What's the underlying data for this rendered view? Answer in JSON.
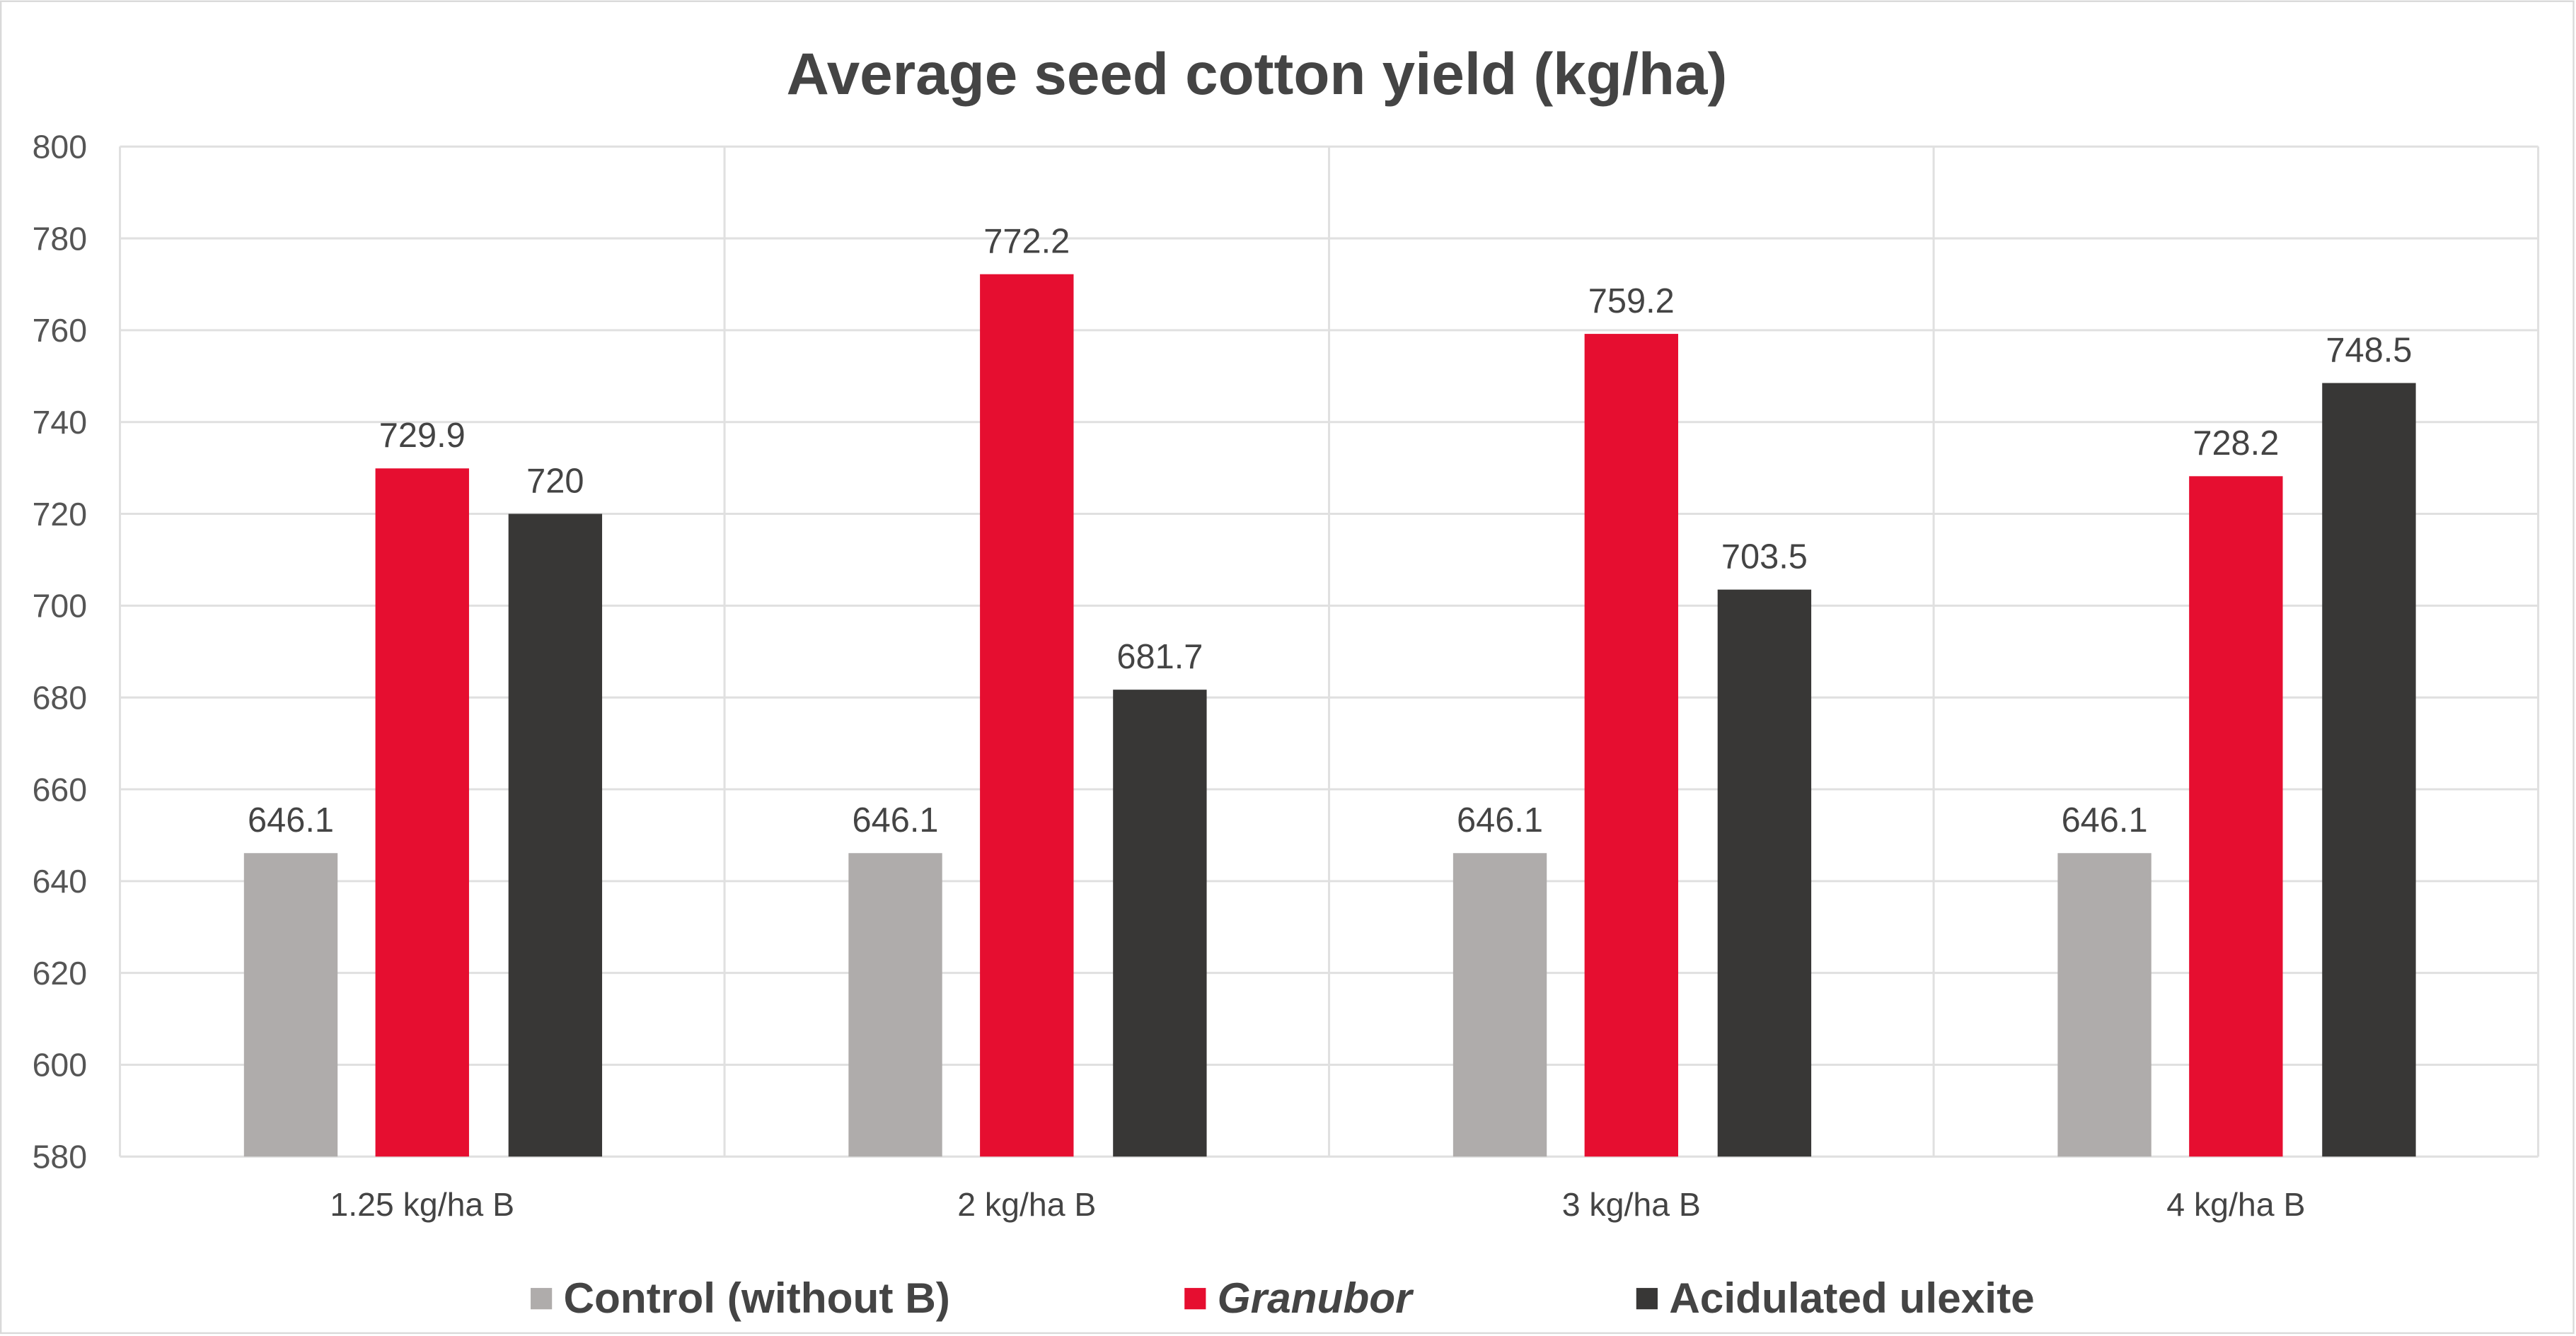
{
  "chart_data": {
    "type": "bar",
    "title": "Average seed cotton yield (kg/ha)",
    "xlabel": "",
    "ylabel": "",
    "categories": [
      "1.25 kg/ha B",
      "2 kg/ha B",
      "3 kg/ha B",
      "4 kg/ha B"
    ],
    "ylim": [
      580,
      800
    ],
    "yticks": [
      580,
      600,
      620,
      640,
      660,
      680,
      700,
      720,
      740,
      760,
      780,
      800
    ],
    "grid": true,
    "legend_position": "bottom",
    "series": [
      {
        "name": "Control (without B)",
        "color": "#AFACAB",
        "italic": false,
        "values": [
          646.1,
          646.1,
          646.1,
          646.1
        ],
        "labels": [
          "646.1",
          "646.1",
          "646.1",
          "646.1"
        ]
      },
      {
        "name": "Granubor",
        "color": "#E60E30",
        "italic": true,
        "values": [
          729.9,
          772.2,
          759.2,
          728.2
        ],
        "labels": [
          "729.9",
          "772.2",
          "759.2",
          "728.2"
        ]
      },
      {
        "name": "Acidulated ulexite",
        "color": "#383736",
        "italic": false,
        "values": [
          720,
          681.7,
          703.5,
          748.5
        ],
        "labels": [
          "720",
          "681.7",
          "703.5",
          "748.5"
        ]
      }
    ]
  }
}
